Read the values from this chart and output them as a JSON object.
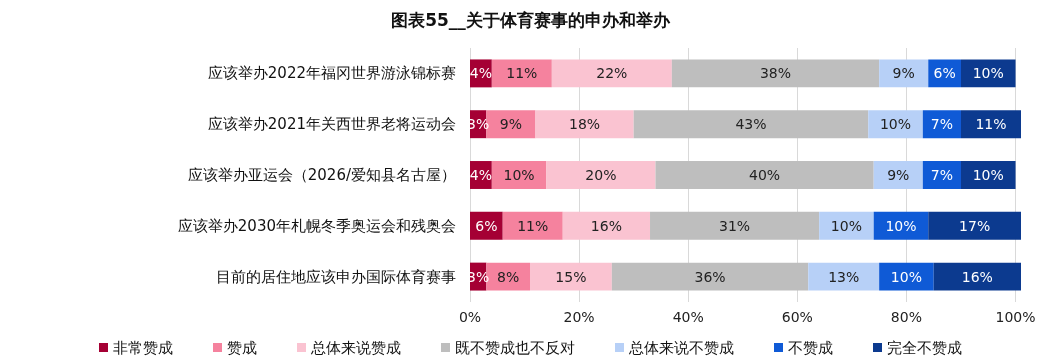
{
  "chart_data": {
    "type": "bar",
    "orientation": "horizontal",
    "stacked": true,
    "title": "图表55__关于体育赛事的申办和举办",
    "categories": [
      "应该举办2022年福冈世界游泳锦标赛",
      "应该举办2021年关西世界老将运动会",
      "应该举办亚运会（2026/爱知县名古屋）",
      "应该举办2030年札幌冬季奥运会和残奥会",
      "目前的居住地应该申办国际体育赛事"
    ],
    "series": [
      {
        "name": "非常赞成",
        "color": "#a50034",
        "values": [
          4,
          3,
          4,
          6,
          3
        ],
        "value_labels": [
          "4%",
          "3%",
          "4%",
          "6%",
          "3%"
        ]
      },
      {
        "name": "赞成",
        "color": "#f5829e",
        "values": [
          11,
          9,
          10,
          11,
          8
        ],
        "value_labels": [
          "11%",
          "9%",
          "10%",
          "11%",
          "8%"
        ]
      },
      {
        "name": "总体来说赞成",
        "color": "#fac3d1",
        "values": [
          22,
          18,
          20,
          16,
          15
        ],
        "value_labels": [
          "22%",
          "18%",
          "20%",
          "16%",
          "15%"
        ]
      },
      {
        "name": "既不赞成也不反对",
        "color": "#bebebe",
        "values": [
          38,
          43,
          40,
          31,
          36
        ],
        "value_labels": [
          "38%",
          "43%",
          "40%",
          "31%",
          "36%"
        ]
      },
      {
        "name": "总体来说不赞成",
        "color": "#b7d0f7",
        "values": [
          9,
          10,
          9,
          10,
          13
        ],
        "value_labels": [
          "9%",
          "10%",
          "9%",
          "10%",
          "13%"
        ]
      },
      {
        "name": "不赞成",
        "color": "#0f5ad6",
        "values": [
          6,
          7,
          7,
          10,
          10
        ],
        "value_labels": [
          "6%",
          "7%",
          "7%",
          "10%",
          "10%"
        ]
      },
      {
        "name": "完全不赞成",
        "color": "#0c3a8f",
        "values": [
          10,
          11,
          10,
          17,
          16
        ],
        "value_labels": [
          "10%",
          "11%",
          "10%",
          "17%",
          "16%"
        ]
      }
    ],
    "xlim": [
      0,
      101
    ],
    "xticks": [
      {
        "value": 0,
        "label": "0%"
      },
      {
        "value": 20,
        "label": "20%"
      },
      {
        "value": 40,
        "label": "40%"
      },
      {
        "value": 60,
        "label": "60%"
      },
      {
        "value": 80,
        "label": "80%"
      },
      {
        "value": 100,
        "label": "100%"
      }
    ],
    "grid": "x",
    "legend": "bottom"
  }
}
